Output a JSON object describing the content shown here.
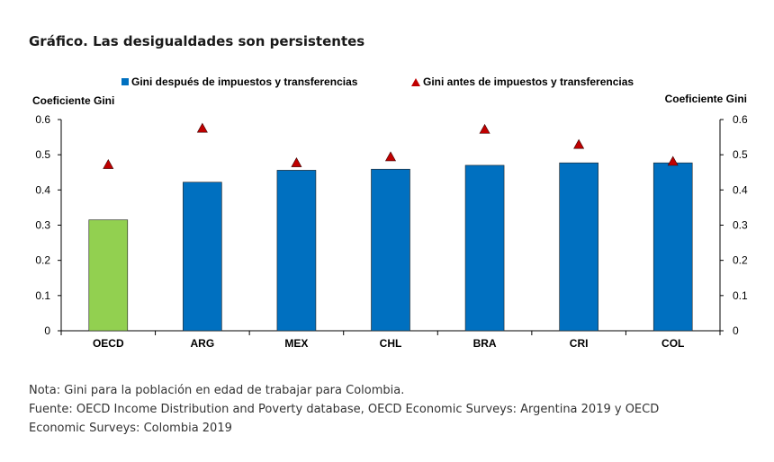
{
  "chart_data": {
    "type": "bar",
    "title": "Gráfico. Las desigualdades son persistentes",
    "ylabel_left": "Coeficiente Gini",
    "ylabel_right": "Coeficiente Gini",
    "ylim": [
      0,
      0.6
    ],
    "yticks": [
      "0",
      "0.1",
      "0.2",
      "0.3",
      "0.4",
      "0.5",
      "0.6"
    ],
    "categories": [
      "OECD",
      "ARG",
      "MEX",
      "CHL",
      "BRA",
      "CRI",
      "COL"
    ],
    "series": [
      {
        "name": "Gini después de impuestos y transferencias",
        "kind": "bar",
        "values": [
          0.315,
          0.422,
          0.456,
          0.459,
          0.47,
          0.477,
          0.477
        ],
        "colors": [
          "#92d050",
          "#0070c0",
          "#0070c0",
          "#0070c0",
          "#0070c0",
          "#0070c0",
          "#0070c0"
        ]
      },
      {
        "name": "Gini antes de impuestos y transferencias",
        "kind": "marker-triangle",
        "values": [
          0.472,
          0.575,
          0.477,
          0.494,
          0.572,
          0.529,
          0.481
        ],
        "color": "#c00000"
      }
    ],
    "legend": [
      "Gini después de impuestos y transferencias",
      "Gini antes de impuestos y transferencias"
    ]
  },
  "notes": {
    "nota": "Nota: Gini para la población en edad de trabajar para Colombia.",
    "fuente": "Fuente: OECD Income Distribution and Poverty database, OECD Economic Surveys: Argentina 2019 y OECD Economic Surveys: Colombia 2019"
  }
}
